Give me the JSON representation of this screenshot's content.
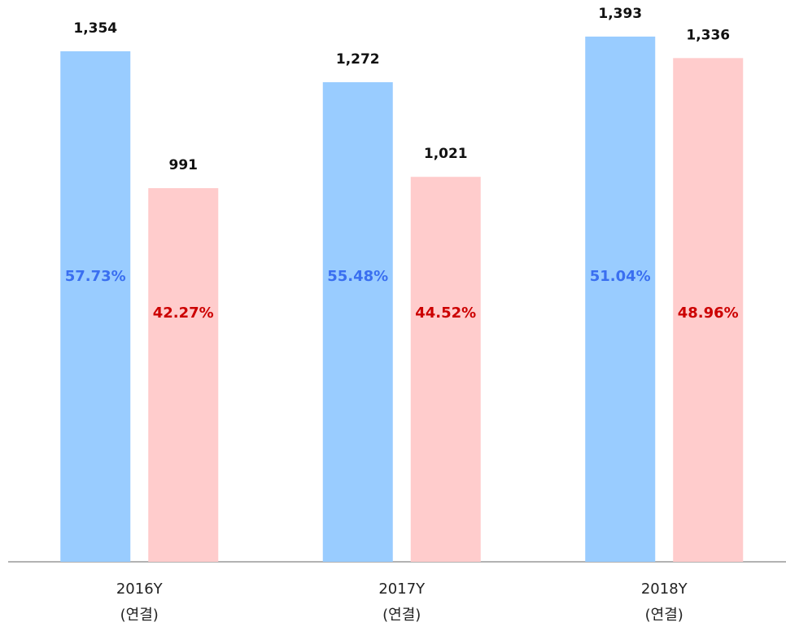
{
  "chart_data": {
    "type": "bar",
    "categories": [
      "2016Y\n(연결)",
      "2017Y\n(연결)",
      "2018Y\n(연결)"
    ],
    "ylim": [
      0,
      1490
    ],
    "series": [
      {
        "color": "#99ccff",
        "label_color": "#3a6ff0",
        "values": [
          1354,
          1272,
          1393
        ],
        "value_labels": [
          "1,354",
          "1,272",
          "1,393"
        ],
        "shares": [
          57.73,
          55.48,
          51.04
        ],
        "share_labels": [
          "57.73%",
          "55.48%",
          "51.04%"
        ]
      },
      {
        "color": "#ffcccc",
        "label_color": "#cc0000",
        "values": [
          991,
          1021,
          1336
        ],
        "value_labels": [
          "991",
          "1,021",
          "1,336"
        ],
        "shares": [
          42.27,
          44.52,
          48.96
        ],
        "share_labels": [
          "42.27%",
          "44.52%",
          "48.96%"
        ]
      }
    ]
  }
}
